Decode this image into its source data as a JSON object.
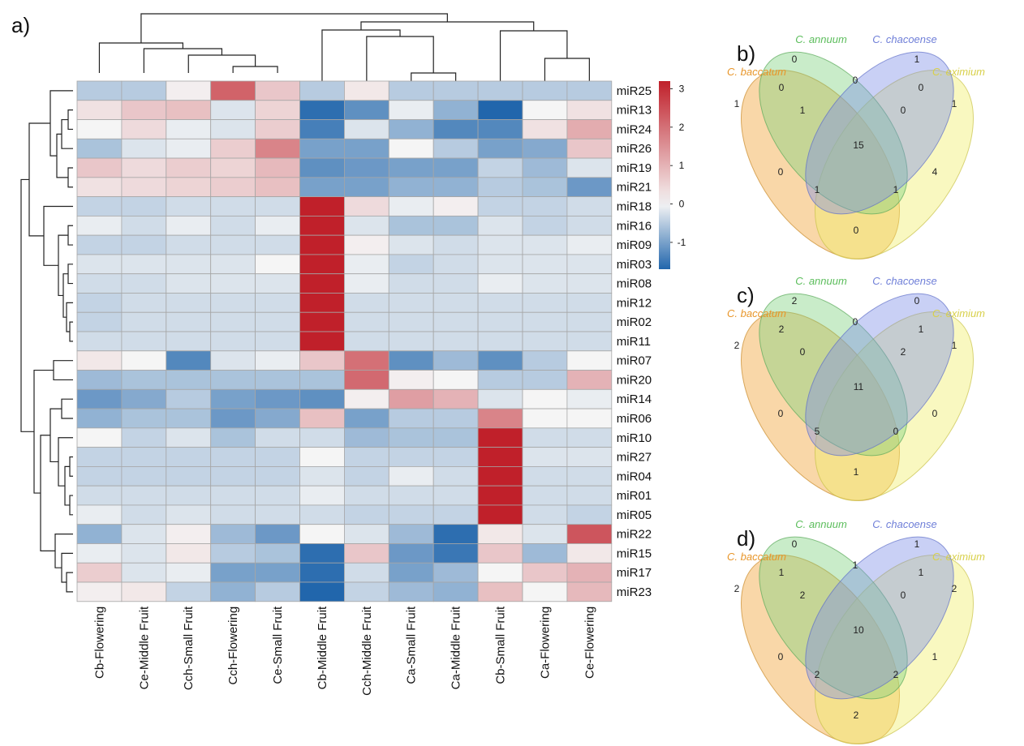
{
  "chart_data": [
    {
      "type": "heatmap",
      "panel": "a)",
      "rows": [
        "miR25",
        "miR13",
        "miR24",
        "miR26",
        "miR19",
        "miR21",
        "miR18",
        "miR16",
        "miR09",
        "miR03",
        "miR08",
        "miR12",
        "miR02",
        "miR11",
        "miR07",
        "miR20",
        "miR14",
        "miR06",
        "miR10",
        "miR27",
        "miR04",
        "miR01",
        "miR05",
        "miR22",
        "miR15",
        "miR17",
        "miR23"
      ],
      "columns": [
        "Cb-Flowering",
        "Ce-Middle Fruit",
        "Cch-Small Fruit",
        "Cch-Flowering",
        "Ce-Small Fruit",
        "Cb-Middle Fruit",
        "Cch-Middle Fruit",
        "Ca-Small Fruit",
        "Ca-Middle Fruit",
        "Cb-Small Fruit",
        "Ca-Flowering",
        "Ce-Flowering"
      ],
      "values": [
        [
          -0.5,
          -0.5,
          0.1,
          2.2,
          0.7,
          -0.5,
          0.2,
          -0.5,
          -0.5,
          -0.5,
          -0.5,
          -0.5
        ],
        [
          0.3,
          0.7,
          0.8,
          -0.2,
          0.5,
          -1.6,
          -1.2,
          -0.1,
          -0.8,
          -1.7,
          0.0,
          0.3
        ],
        [
          0.0,
          0.4,
          -0.1,
          -0.2,
          0.6,
          -1.4,
          -0.2,
          -0.8,
          -1.3,
          -1.3,
          0.3,
          1.1
        ],
        [
          -0.6,
          -0.2,
          -0.1,
          0.6,
          1.7,
          -1.0,
          -1.0,
          0.0,
          -0.5,
          -1.0,
          -0.9,
          0.7
        ],
        [
          0.7,
          0.4,
          0.6,
          0.5,
          0.9,
          -1.2,
          -1.1,
          -1.0,
          -1.0,
          -0.4,
          -0.7,
          -0.2
        ],
        [
          0.3,
          0.4,
          0.5,
          0.6,
          0.8,
          -1.0,
          -1.0,
          -0.8,
          -0.8,
          -0.5,
          -0.6,
          -1.1
        ],
        [
          -0.4,
          -0.4,
          -0.3,
          -0.3,
          -0.3,
          3.2,
          0.4,
          -0.1,
          0.1,
          -0.4,
          -0.4,
          -0.3
        ],
        [
          -0.1,
          -0.3,
          -0.1,
          -0.3,
          -0.1,
          3.2,
          -0.2,
          -0.6,
          -0.6,
          -0.2,
          -0.4,
          -0.3
        ],
        [
          -0.4,
          -0.4,
          -0.3,
          -0.3,
          -0.3,
          3.2,
          0.1,
          -0.2,
          -0.3,
          -0.2,
          -0.2,
          -0.1
        ],
        [
          -0.2,
          -0.2,
          -0.2,
          -0.2,
          0.0,
          3.2,
          -0.1,
          -0.4,
          -0.3,
          -0.2,
          -0.2,
          -0.2
        ],
        [
          -0.3,
          -0.3,
          -0.2,
          -0.2,
          -0.2,
          3.2,
          -0.1,
          -0.3,
          -0.3,
          -0.1,
          -0.2,
          -0.2
        ],
        [
          -0.4,
          -0.3,
          -0.3,
          -0.3,
          -0.3,
          3.2,
          -0.3,
          -0.3,
          -0.3,
          -0.3,
          -0.3,
          -0.3
        ],
        [
          -0.4,
          -0.3,
          -0.3,
          -0.3,
          -0.3,
          3.2,
          -0.3,
          -0.3,
          -0.3,
          -0.3,
          -0.3,
          -0.3
        ],
        [
          -0.3,
          -0.3,
          -0.3,
          -0.3,
          -0.3,
          3.2,
          -0.3,
          -0.3,
          -0.3,
          -0.3,
          -0.3,
          -0.3
        ],
        [
          0.2,
          0.0,
          -1.3,
          -0.2,
          -0.1,
          0.7,
          2.0,
          -1.2,
          -0.7,
          -1.2,
          -0.5,
          0.0
        ],
        [
          -0.7,
          -0.6,
          -0.6,
          -0.6,
          -0.6,
          -0.6,
          2.1,
          0.1,
          0.0,
          -0.5,
          -0.5,
          1.0
        ],
        [
          -1.1,
          -0.9,
          -0.5,
          -1.0,
          -1.1,
          -1.2,
          0.1,
          1.3,
          1.0,
          -0.2,
          0.0,
          -0.1
        ],
        [
          -0.8,
          -0.6,
          -0.6,
          -1.1,
          -0.9,
          0.8,
          -1.0,
          -0.5,
          -0.5,
          1.7,
          0.0,
          0.0
        ],
        [
          0.0,
          -0.4,
          -0.2,
          -0.6,
          -0.3,
          -0.3,
          -0.7,
          -0.6,
          -0.6,
          3.2,
          -0.3,
          -0.3
        ],
        [
          -0.4,
          -0.4,
          -0.4,
          -0.4,
          -0.4,
          0.0,
          -0.4,
          -0.4,
          -0.4,
          3.2,
          -0.2,
          -0.2
        ],
        [
          -0.4,
          -0.4,
          -0.4,
          -0.4,
          -0.4,
          -0.2,
          -0.4,
          -0.1,
          -0.3,
          3.2,
          -0.3,
          -0.3
        ],
        [
          -0.3,
          -0.3,
          -0.3,
          -0.3,
          -0.3,
          -0.1,
          -0.3,
          -0.3,
          -0.3,
          3.2,
          -0.3,
          -0.3
        ],
        [
          -0.1,
          -0.3,
          -0.2,
          -0.3,
          -0.3,
          -0.3,
          -0.4,
          -0.4,
          -0.4,
          3.2,
          -0.3,
          -0.4
        ],
        [
          -0.8,
          -0.2,
          0.1,
          -0.7,
          -1.1,
          0.0,
          -0.2,
          -0.7,
          -1.6,
          0.2,
          -0.2,
          2.4
        ],
        [
          -0.1,
          -0.2,
          0.2,
          -0.5,
          -0.6,
          -1.6,
          0.7,
          -1.1,
          -1.5,
          0.7,
          -0.7,
          0.2
        ],
        [
          0.6,
          -0.2,
          -0.1,
          -1.0,
          -1.0,
          -1.6,
          -0.3,
          -1.0,
          -0.7,
          0.0,
          0.7,
          1.0
        ],
        [
          0.1,
          0.2,
          -0.4,
          -0.8,
          -0.5,
          -1.7,
          -0.4,
          -0.7,
          -0.8,
          0.8,
          0.0,
          0.9
        ]
      ],
      "colorbar": {
        "ticks": [
          3,
          2,
          1,
          0,
          -1
        ],
        "range": [
          -1.7,
          3.2
        ],
        "low_color": "#2166ac",
        "mid_color": "#f5f5f5",
        "high_color": "#c0202a"
      }
    },
    {
      "type": "venn",
      "panel": "b)",
      "sets": [
        "C. baccatum",
        "C. annuum",
        "C. chacoense",
        "C. eximium"
      ],
      "regions": {
        "annuum_only": "0",
        "chacoense_only": "1",
        "baccatum_only": "1",
        "eximium_only": "1",
        "annuum_chacoense": "0",
        "baccatum_annuum": "0",
        "chacoense_eximium": "0",
        "baccatum_annuum_chacoense": "1",
        "annuum_chacoense_eximium": "0",
        "all_four": "15",
        "baccatum_chacoense": "0",
        "annuum_eximium": "4",
        "baccatum_chacoense_eximium": "1",
        "baccatum_annuum_eximium": "1",
        "baccatum_eximium": "0"
      }
    },
    {
      "type": "venn",
      "panel": "c)",
      "sets": [
        "C. baccatum",
        "C. annuum",
        "C. chacoense",
        "C. eximium"
      ],
      "regions": {
        "annuum_only": "2",
        "chacoense_only": "0",
        "baccatum_only": "2",
        "eximium_only": "1",
        "annuum_chacoense": "0",
        "baccatum_annuum": "2",
        "chacoense_eximium": "1",
        "baccatum_annuum_chacoense": "0",
        "annuum_chacoense_eximium": "2",
        "all_four": "11",
        "baccatum_chacoense": "0",
        "annuum_eximium": "0",
        "baccatum_chacoense_eximium": "5",
        "baccatum_annuum_eximium": "0",
        "baccatum_eximium": "1"
      }
    },
    {
      "type": "venn",
      "panel": "d)",
      "sets": [
        "C. baccatum",
        "C. annuum",
        "C. chacoense",
        "C. eximium"
      ],
      "regions": {
        "annuum_only": "0",
        "chacoense_only": "1",
        "baccatum_only": "2",
        "eximium_only": "2",
        "annuum_chacoense": "1",
        "baccatum_annuum": "1",
        "chacoense_eximium": "1",
        "baccatum_annuum_chacoense": "2",
        "annuum_chacoense_eximium": "0",
        "all_four": "10",
        "baccatum_chacoense": "0",
        "annuum_eximium": "1",
        "baccatum_chacoense_eximium": "2",
        "baccatum_annuum_eximium": "2",
        "baccatum_eximium": "2"
      }
    }
  ],
  "colors": {
    "baccatum": "#f0a030",
    "baccatum_label": "#e8962a",
    "annuum": "#7fd27f",
    "annuum_label": "#5bbd5b",
    "chacoense": "#7f8fe8",
    "chacoense_label": "#6f7fd8",
    "eximium": "#f0ee6a",
    "eximium_label": "#d8d04a",
    "grid": "#a6a6a6"
  }
}
